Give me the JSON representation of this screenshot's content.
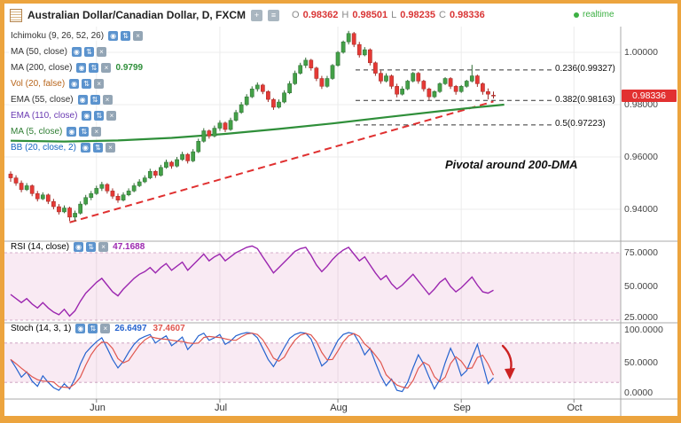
{
  "header": {
    "title": "Australian Dollar/Canadian Dollar, D, FXCM",
    "ohlc": {
      "o_label": "O",
      "o": "0.98362",
      "h_label": "H",
      "h": "0.98501",
      "l_label": "L",
      "l": "0.98235",
      "c_label": "C",
      "c": "0.98336"
    },
    "realtime_label": "realtime"
  },
  "icons": {
    "eye": "◉",
    "arrows": "⇅",
    "close": "×",
    "add": "+",
    "list": "≡"
  },
  "indicators": [
    {
      "label": "Ichimoku (9, 26, 52, 26)",
      "color": "#333333"
    },
    {
      "label": "MA (50, close)",
      "color": "#333333"
    },
    {
      "label": "MA (200, close)",
      "color": "#333333",
      "value": "0.9799",
      "value_color": "#2f8f3a"
    },
    {
      "label": "Vol (20, false)",
      "color": "#b8651b"
    },
    {
      "label": "EMA (55, close)",
      "color": "#333333"
    },
    {
      "label": "EMA (110, close)",
      "color": "#6a3ab2"
    },
    {
      "label": "MA (5, close)",
      "color": "#2e7d32"
    },
    {
      "label": "BB (20, close, 2)",
      "color": "#1565c0"
    }
  ],
  "rsi_panel": {
    "label": "RSI (14, close)",
    "value": "47.1688"
  },
  "stoch_panel": {
    "label": "Stoch (14, 3, 1)",
    "value_k": "26.6497",
    "value_d": "37.4607"
  },
  "price_axis": {
    "ticks": [
      "1.00000",
      "0.98000",
      "0.96000",
      "0.94000"
    ],
    "last_price": "0.98336",
    "rsi_ticks": [
      "75.0000",
      "50.0000",
      "25.0000"
    ],
    "stoch_ticks": [
      "100.0000",
      "50.0000",
      "0.0000"
    ]
  },
  "time_axis": {
    "labels": [
      "Jun",
      "Jul",
      "Aug",
      "Sep",
      "Oct"
    ]
  },
  "annotations": {
    "pivotal": "Pivotal around 200-DMA"
  },
  "colors": {
    "frame": "#eca43e",
    "candle_up": "#43a047",
    "candle_up_border": "#2e6b33",
    "candle_down": "#e53935",
    "candle_down_border": "#9e2b26",
    "ma200": "#2f8f3a",
    "trendline": "#e03030",
    "rsi": "#9c27b0",
    "stoch_k": "#2563cf",
    "stoch_d": "#e0564e",
    "band_fill": "rgba(216,108,168,0.14)",
    "band_edge": "#b06fa0",
    "grid": "#ececec",
    "divider": "#a9a9a9",
    "fib_line": "#333333",
    "price_down": "#d93535",
    "realtime": "#3cb043",
    "badge_bg": "#e23131",
    "arrow": "#cc2222"
  },
  "chart_data": {
    "type": "candlestick",
    "symbol": "AUD/CAD",
    "timeframe": "D",
    "exchange": "FXCM",
    "main_ylim": [
      0.928,
      1.011
    ],
    "price_gridlines": [
      1.0,
      0.98,
      0.96,
      0.94
    ],
    "month_candle_indices": [
      16,
      39,
      61,
      84,
      105
    ],
    "candles": [
      [
        0.9535,
        0.9545,
        0.9505,
        0.952
      ],
      [
        0.952,
        0.953,
        0.949,
        0.95
      ],
      [
        0.95,
        0.951,
        0.9465,
        0.9475
      ],
      [
        0.9475,
        0.95,
        0.947,
        0.949
      ],
      [
        0.949,
        0.9495,
        0.945,
        0.946
      ],
      [
        0.946,
        0.947,
        0.943,
        0.944
      ],
      [
        0.944,
        0.9465,
        0.9435,
        0.9455
      ],
      [
        0.9455,
        0.946,
        0.942,
        0.943
      ],
      [
        0.943,
        0.944,
        0.94,
        0.941
      ],
      [
        0.941,
        0.942,
        0.938,
        0.939
      ],
      [
        0.939,
        0.9415,
        0.9385,
        0.9405
      ],
      [
        0.9405,
        0.941,
        0.9355,
        0.937
      ],
      [
        0.937,
        0.9395,
        0.9355,
        0.9385
      ],
      [
        0.9385,
        0.943,
        0.938,
        0.942
      ],
      [
        0.942,
        0.9455,
        0.9415,
        0.9445
      ],
      [
        0.9445,
        0.947,
        0.9435,
        0.946
      ],
      [
        0.946,
        0.949,
        0.9455,
        0.948
      ],
      [
        0.948,
        0.9505,
        0.947,
        0.9495
      ],
      [
        0.9495,
        0.95,
        0.946,
        0.947
      ],
      [
        0.947,
        0.948,
        0.944,
        0.945
      ],
      [
        0.945,
        0.946,
        0.9425,
        0.9435
      ],
      [
        0.9435,
        0.9465,
        0.943,
        0.9455
      ],
      [
        0.9455,
        0.948,
        0.945,
        0.947
      ],
      [
        0.947,
        0.95,
        0.9465,
        0.949
      ],
      [
        0.949,
        0.9515,
        0.9485,
        0.9505
      ],
      [
        0.9505,
        0.953,
        0.95,
        0.952
      ],
      [
        0.952,
        0.9555,
        0.9515,
        0.9545
      ],
      [
        0.9545,
        0.955,
        0.952,
        0.953
      ],
      [
        0.953,
        0.957,
        0.9525,
        0.956
      ],
      [
        0.956,
        0.959,
        0.9555,
        0.958
      ],
      [
        0.958,
        0.9585,
        0.9555,
        0.9565
      ],
      [
        0.9565,
        0.96,
        0.956,
        0.959
      ],
      [
        0.959,
        0.962,
        0.9585,
        0.961
      ],
      [
        0.961,
        0.9615,
        0.9575,
        0.9585
      ],
      [
        0.9585,
        0.963,
        0.958,
        0.962
      ],
      [
        0.962,
        0.967,
        0.9615,
        0.966
      ],
      [
        0.966,
        0.971,
        0.9655,
        0.97
      ],
      [
        0.97,
        0.9705,
        0.967,
        0.968
      ],
      [
        0.968,
        0.972,
        0.9675,
        0.971
      ],
      [
        0.971,
        0.974,
        0.97,
        0.973
      ],
      [
        0.973,
        0.9735,
        0.9695,
        0.9705
      ],
      [
        0.9705,
        0.975,
        0.97,
        0.974
      ],
      [
        0.974,
        0.978,
        0.9735,
        0.977
      ],
      [
        0.977,
        0.981,
        0.9765,
        0.98
      ],
      [
        0.98,
        0.984,
        0.9795,
        0.983
      ],
      [
        0.983,
        0.987,
        0.9825,
        0.986
      ],
      [
        0.986,
        0.9885,
        0.985,
        0.9875
      ],
      [
        0.9875,
        0.988,
        0.984,
        0.985
      ],
      [
        0.985,
        0.9855,
        0.981,
        0.982
      ],
      [
        0.982,
        0.9825,
        0.978,
        0.979
      ],
      [
        0.979,
        0.982,
        0.9785,
        0.981
      ],
      [
        0.981,
        0.9855,
        0.9805,
        0.9845
      ],
      [
        0.9845,
        0.989,
        0.984,
        0.988
      ],
      [
        0.988,
        0.993,
        0.9875,
        0.992
      ],
      [
        0.992,
        0.996,
        0.9915,
        0.995
      ],
      [
        0.995,
        0.998,
        0.994,
        0.997
      ],
      [
        0.997,
        0.9975,
        0.993,
        0.994
      ],
      [
        0.994,
        0.9945,
        0.989,
        0.99
      ],
      [
        0.99,
        0.991,
        0.986,
        0.987
      ],
      [
        0.987,
        0.991,
        0.9865,
        0.99
      ],
      [
        0.99,
        0.9955,
        0.9895,
        0.995
      ],
      [
        0.995,
        1.0005,
        0.9945,
        1.0
      ],
      [
        1.0,
        1.0045,
        0.9995,
        1.004
      ],
      [
        1.004,
        1.0082,
        1.003,
        1.0072
      ],
      [
        1.0072,
        1.0078,
        1.002,
        1.003
      ],
      [
        1.003,
        1.004,
        0.998,
        0.999
      ],
      [
        0.999,
        1.002,
        0.9985,
        1.001
      ],
      [
        1.001,
        1.0015,
        0.995,
        0.996
      ],
      [
        0.996,
        0.9965,
        0.991,
        0.992
      ],
      [
        0.992,
        0.993,
        0.988,
        0.989
      ],
      [
        0.989,
        0.992,
        0.9885,
        0.991
      ],
      [
        0.991,
        0.9915,
        0.986,
        0.987
      ],
      [
        0.987,
        0.988,
        0.9828,
        0.984
      ],
      [
        0.984,
        0.987,
        0.9835,
        0.986
      ],
      [
        0.986,
        0.9895,
        0.9855,
        0.989
      ],
      [
        0.989,
        0.9925,
        0.9885,
        0.992
      ],
      [
        0.992,
        0.9925,
        0.988,
        0.989
      ],
      [
        0.989,
        0.9895,
        0.985,
        0.986
      ],
      [
        0.986,
        0.9865,
        0.9818,
        0.983
      ],
      [
        0.983,
        0.9855,
        0.9825,
        0.985
      ],
      [
        0.985,
        0.9885,
        0.9845,
        0.988
      ],
      [
        0.988,
        0.9905,
        0.9875,
        0.99
      ],
      [
        0.99,
        0.9905,
        0.986,
        0.987
      ],
      [
        0.987,
        0.9875,
        0.9838,
        0.985
      ],
      [
        0.985,
        0.9875,
        0.9845,
        0.987
      ],
      [
        0.987,
        0.9895,
        0.9865,
        0.989
      ],
      [
        0.989,
        0.9952,
        0.9885,
        0.991
      ],
      [
        0.991,
        0.9915,
        0.9868,
        0.988
      ],
      [
        0.988,
        0.9885,
        0.9838,
        0.985
      ],
      [
        0.985,
        0.9862,
        0.982,
        0.984
      ],
      [
        0.98362,
        0.98501,
        0.98235,
        0.98336
      ]
    ],
    "ma200_points": [
      [
        0,
        0.9662
      ],
      [
        10,
        0.9659
      ],
      [
        20,
        0.9663
      ],
      [
        30,
        0.9673
      ],
      [
        40,
        0.9688
      ],
      [
        50,
        0.9707
      ],
      [
        60,
        0.9728
      ],
      [
        70,
        0.9752
      ],
      [
        80,
        0.9775
      ],
      [
        86,
        0.9788
      ],
      [
        92,
        0.98
      ]
    ],
    "trendline": {
      "start_index": 11,
      "start_price": 0.935,
      "end_index": 90,
      "end_price": 0.9812
    },
    "fib_levels": [
      {
        "label": "0.236(0.99327)",
        "price": 0.99327
      },
      {
        "label": "0.382(0.98163)",
        "price": 0.98163
      },
      {
        "label": "0.5(0.97223)",
        "price": 0.97223
      }
    ],
    "rsi": {
      "last": 47.1688,
      "bands": [
        75,
        25
      ],
      "values": [
        44,
        41,
        38,
        41,
        37,
        34,
        38,
        34,
        31,
        29,
        33,
        28,
        32,
        39,
        45,
        49,
        53,
        56,
        51,
        46,
        43,
        48,
        52,
        56,
        59,
        61,
        64,
        60,
        64,
        67,
        62,
        65,
        68,
        62,
        66,
        70,
        74,
        69,
        72,
        74,
        69,
        72,
        75,
        77,
        79,
        80,
        78,
        72,
        66,
        60,
        64,
        68,
        72,
        76,
        78,
        79,
        73,
        66,
        61,
        65,
        70,
        74,
        77,
        79,
        74,
        69,
        72,
        66,
        60,
        55,
        58,
        52,
        48,
        51,
        55,
        59,
        54,
        49,
        44,
        48,
        53,
        56,
        50,
        46,
        49,
        53,
        57,
        51,
        46,
        45,
        47.17
      ]
    },
    "stoch": {
      "last_k": 26.6497,
      "last_d": 37.4607,
      "bands": [
        80,
        20
      ],
      "k": [
        55,
        42,
        28,
        36,
        22,
        14,
        30,
        20,
        12,
        8,
        18,
        10,
        26,
        48,
        65,
        74,
        82,
        88,
        72,
        55,
        42,
        52,
        66,
        78,
        86,
        90,
        93,
        80,
        86,
        91,
        76,
        82,
        89,
        70,
        79,
        91,
        95,
        84,
        88,
        93,
        78,
        83,
        91,
        94,
        96,
        95,
        88,
        72,
        55,
        44,
        58,
        73,
        87,
        93,
        96,
        95,
        86,
        66,
        45,
        52,
        68,
        84,
        93,
        96,
        94,
        80,
        62,
        72,
        50,
        30,
        15,
        25,
        8,
        6,
        20,
        42,
        62,
        48,
        28,
        10,
        24,
        50,
        72,
        55,
        30,
        38,
        58,
        78,
        48,
        18,
        27
      ]
    }
  }
}
